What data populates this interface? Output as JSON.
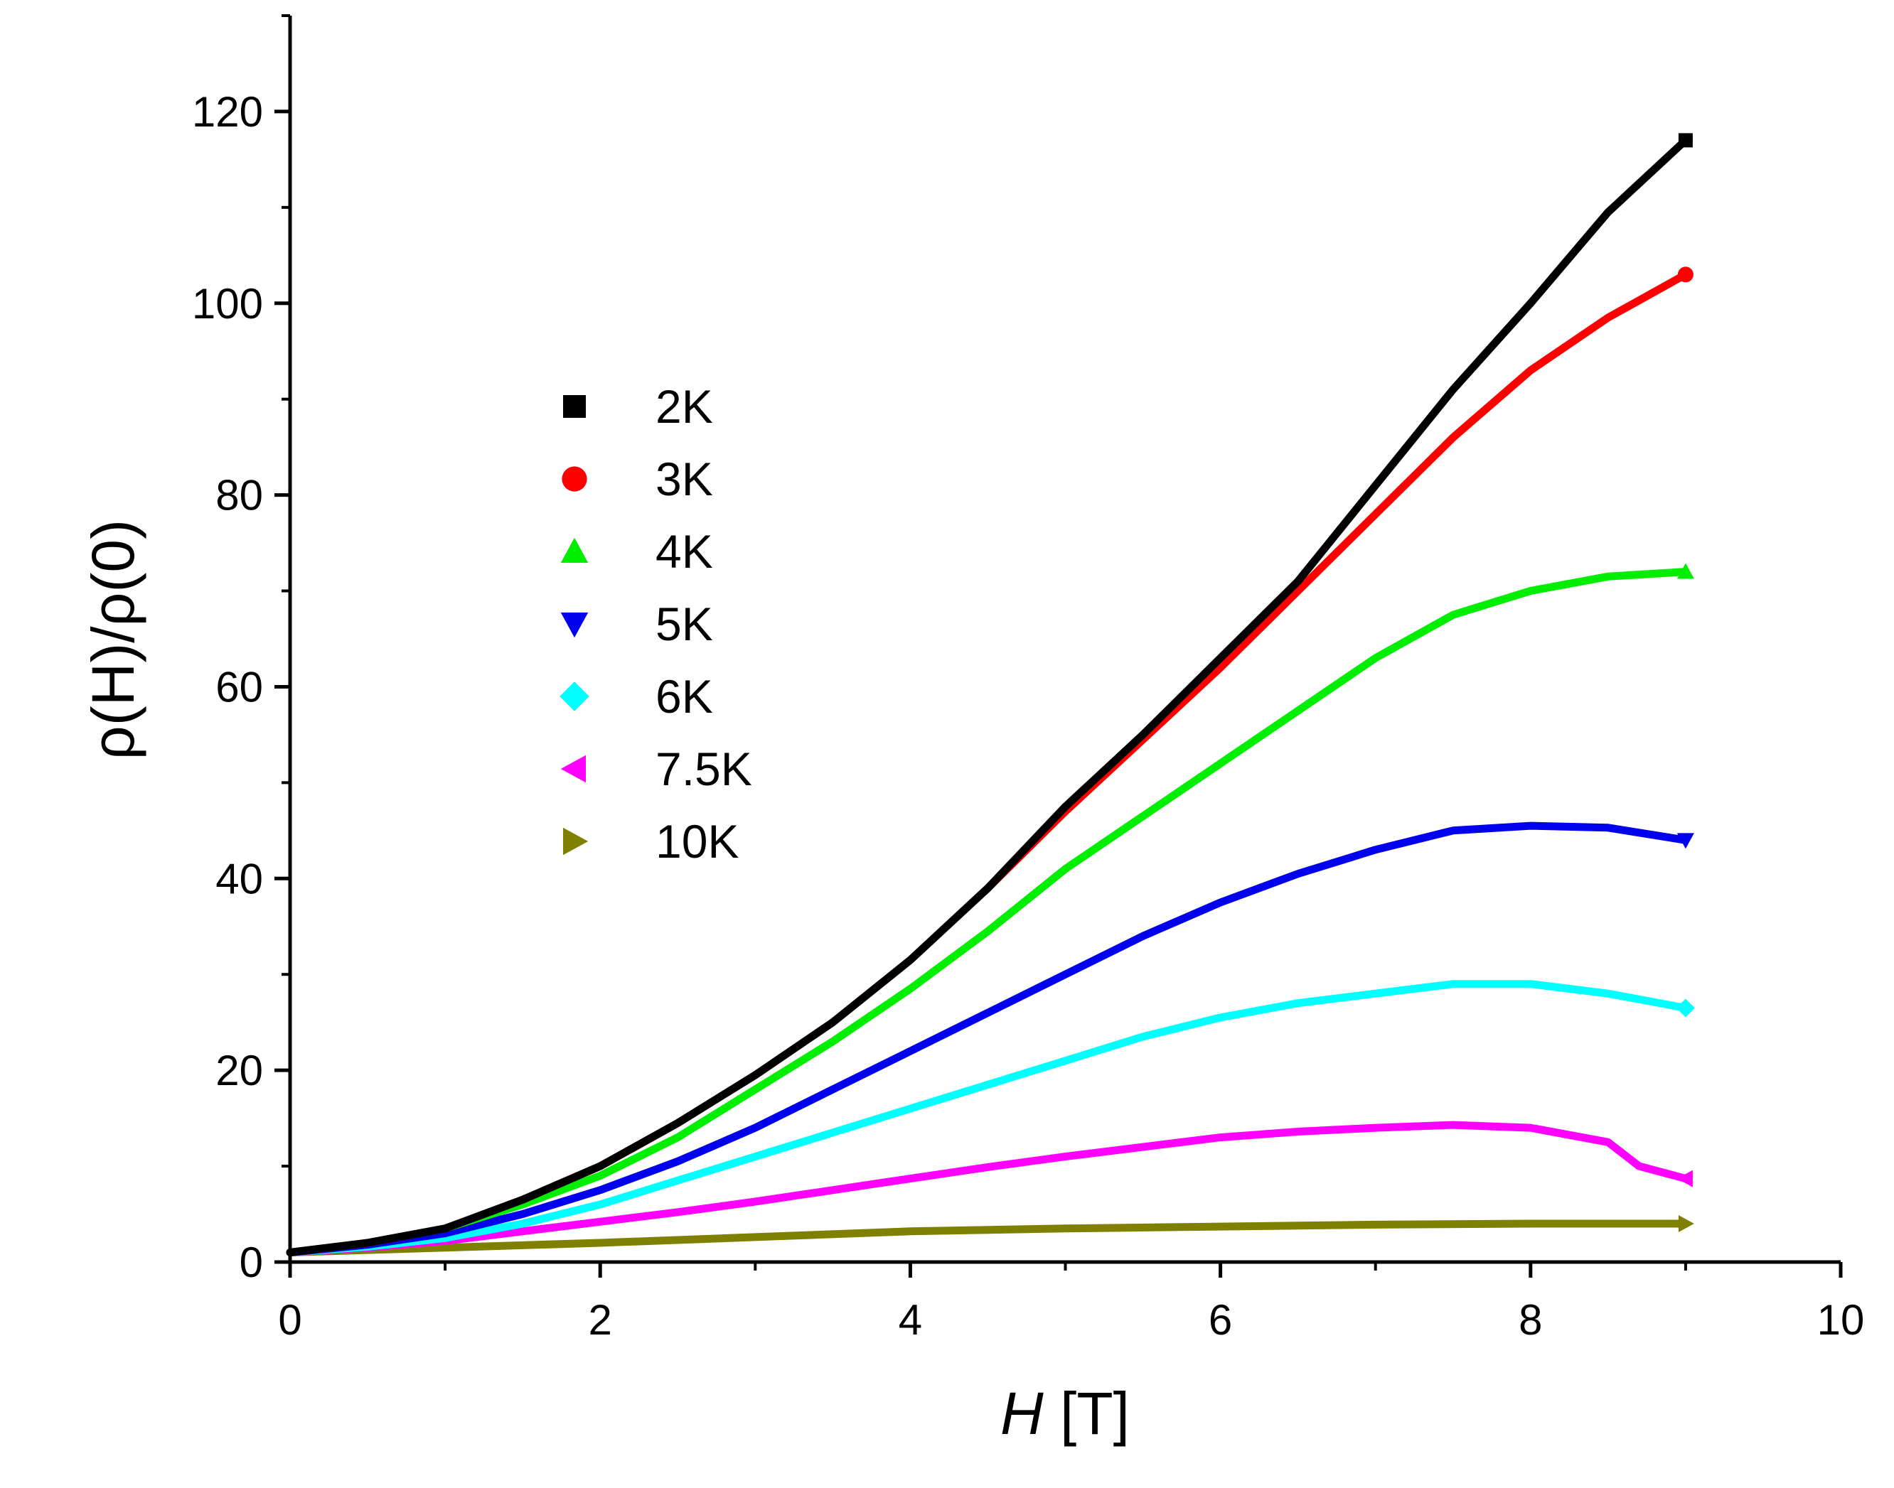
{
  "chart_data": {
    "type": "line",
    "title": "",
    "xlabel_italic": "H",
    "xlabel_rest": " [T]",
    "ylabel": "ρ(H)/ρ(0)",
    "xlim": [
      0,
      10
    ],
    "ylim": [
      0,
      130
    ],
    "xticks": [
      0,
      2,
      4,
      6,
      8,
      10
    ],
    "yticks": [
      0,
      20,
      40,
      60,
      80,
      100,
      120
    ],
    "xtick_labels": [
      "0",
      "2",
      "4",
      "6",
      "8",
      "10"
    ],
    "ytick_labels": [
      "0",
      "20",
      "40",
      "60",
      "80",
      "100",
      "120"
    ],
    "x_minor_step": 1,
    "y_minor_step": 10,
    "grid": false,
    "legend_position": "upper-left-inside",
    "series": [
      {
        "name": "2K",
        "color": "#000000",
        "marker": "square",
        "x": [
          0,
          0.5,
          1,
          1.5,
          2,
          2.5,
          3,
          3.5,
          4,
          4.5,
          5,
          5.5,
          6,
          6.5,
          7,
          7.5,
          8,
          8.5,
          9
        ],
        "y": [
          1,
          2,
          3.5,
          6.5,
          10,
          14.5,
          19.5,
          25,
          31.5,
          39,
          47.5,
          55,
          63,
          71,
          81,
          91,
          100,
          109.5,
          117
        ]
      },
      {
        "name": "3K",
        "color": "#ff0000",
        "marker": "circle",
        "x": [
          0,
          0.5,
          1,
          1.5,
          2,
          2.5,
          3,
          3.5,
          4,
          4.5,
          5,
          5.5,
          6,
          6.5,
          7,
          7.5,
          8,
          8.5,
          9
        ],
        "y": [
          1,
          2,
          3.5,
          6.5,
          10,
          14.5,
          19.5,
          25,
          31.5,
          39,
          47,
          54.5,
          62,
          70,
          78,
          86,
          93,
          98.5,
          103
        ]
      },
      {
        "name": "4K",
        "color": "#00ee00",
        "marker": "triangle-up",
        "x": [
          0,
          0.5,
          1,
          1.5,
          2,
          2.5,
          3,
          3.5,
          4,
          4.5,
          5,
          5.5,
          6,
          6.5,
          7,
          7.5,
          8,
          8.5,
          9
        ],
        "y": [
          1,
          2,
          3.5,
          6,
          9,
          13,
          18,
          23,
          28.5,
          34.5,
          41,
          46.5,
          52,
          57.5,
          63,
          67.5,
          70,
          71.5,
          72
        ]
      },
      {
        "name": "5K",
        "color": "#0000ee",
        "marker": "triangle-down",
        "x": [
          0,
          0.5,
          1,
          1.5,
          2,
          2.5,
          3,
          3.5,
          4,
          4.5,
          5,
          5.5,
          6,
          6.5,
          7,
          7.5,
          8,
          8.5,
          9
        ],
        "y": [
          1,
          1.8,
          3,
          5,
          7.5,
          10.5,
          14,
          18,
          22,
          26,
          30,
          34,
          37.5,
          40.5,
          43,
          45,
          45.5,
          45.3,
          44
        ]
      },
      {
        "name": "6K",
        "color": "#00ffff",
        "marker": "diamond",
        "x": [
          0,
          0.5,
          1,
          1.5,
          2,
          2.5,
          3,
          3.5,
          4,
          4.5,
          5,
          5.5,
          6,
          6.5,
          7,
          7.5,
          8,
          8.5,
          9
        ],
        "y": [
          1,
          1.6,
          2.5,
          4,
          6,
          8.5,
          11,
          13.5,
          16,
          18.5,
          21,
          23.5,
          25.5,
          27,
          28,
          29,
          29,
          28,
          26.5
        ]
      },
      {
        "name": "7.5K",
        "color": "#ff00ff",
        "marker": "triangle-left",
        "x": [
          0,
          0.5,
          1,
          1.5,
          2,
          2.5,
          3,
          3.5,
          4,
          4.5,
          5,
          5.5,
          6,
          6.5,
          7,
          7.5,
          8,
          8.5,
          8.7,
          9
        ],
        "y": [
          1,
          1.5,
          2.2,
          3.2,
          4.2,
          5.2,
          6.3,
          7.5,
          8.7,
          9.9,
          11,
          12,
          13,
          13.6,
          14,
          14.3,
          14,
          12.5,
          10,
          8.7
        ]
      },
      {
        "name": "10K",
        "color": "#808000",
        "marker": "triangle-right",
        "x": [
          0,
          1,
          2,
          3,
          4,
          5,
          6,
          7,
          8,
          9
        ],
        "y": [
          1,
          1.5,
          2,
          2.6,
          3.2,
          3.5,
          3.7,
          3.9,
          4,
          4
        ]
      }
    ]
  }
}
